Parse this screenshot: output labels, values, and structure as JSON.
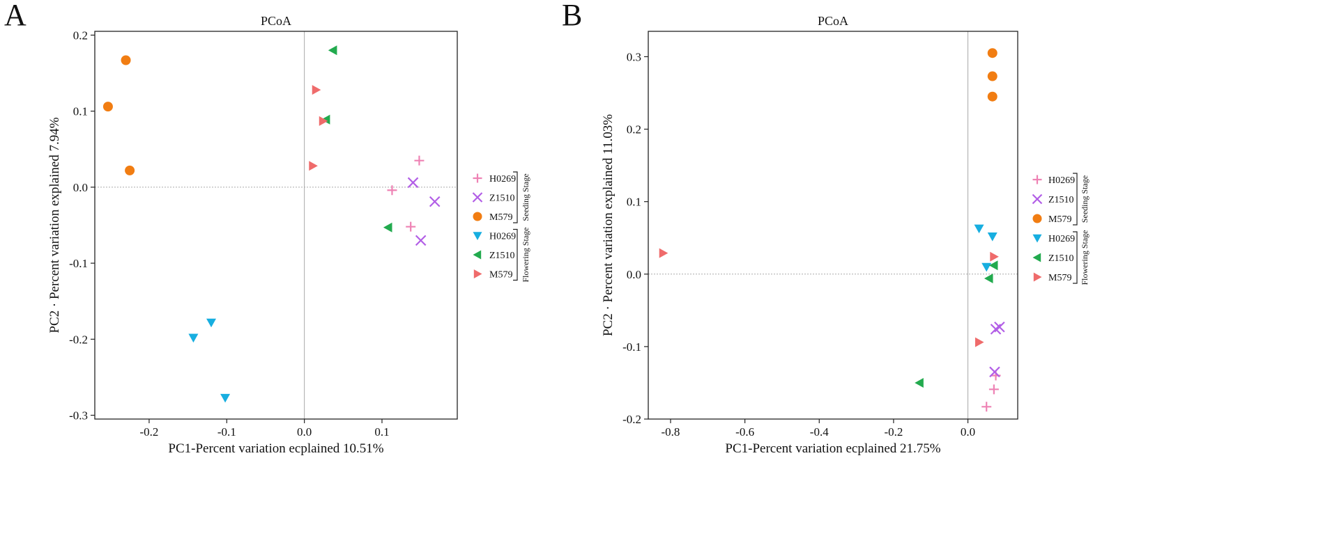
{
  "figure": {
    "panels": [
      "A",
      "B"
    ]
  },
  "legend": {
    "groups": [
      {
        "name": "Seeding Stage",
        "entries": [
          "H0269",
          "Z1510",
          "M579"
        ]
      },
      {
        "name": "Flowering Stage",
        "entries": [
          "H0269",
          "Z1510",
          "M579"
        ]
      }
    ]
  },
  "styles": {
    "Seeding Stage|H0269": {
      "marker": "plus",
      "color": "#ee82b4"
    },
    "Seeding Stage|Z1510": {
      "marker": "cross",
      "color": "#b25ee6"
    },
    "Seeding Stage|M579": {
      "marker": "circle",
      "color": "#f17d12"
    },
    "Flowering Stage|H0269": {
      "marker": "triangle-down",
      "color": "#17aee0"
    },
    "Flowering Stage|Z1510": {
      "marker": "triangle-left",
      "color": "#22aa4e"
    },
    "Flowering Stage|M579": {
      "marker": "triangle-right",
      "color": "#ef6b6b"
    }
  },
  "chart_data": [
    {
      "panel": "A",
      "type": "scatter",
      "title": "PCoA",
      "xlabel": "PC1-Percent variation ecplained 10.51%",
      "ylabel": "PC2 · Percent variation explained 7.94%",
      "xlim": [
        -0.27,
        0.197
      ],
      "ylim": [
        -0.305,
        0.205
      ],
      "xticks": [
        -0.2,
        -0.1,
        0.0,
        0.1
      ],
      "xtick_labels": [
        "-0.2",
        "-0.1",
        "0.0",
        "0.1"
      ],
      "yticks": [
        -0.3,
        -0.2,
        -0.1,
        0.0,
        0.1,
        0.2
      ],
      "ytick_labels": [
        "-0.3",
        "-0.2",
        "-0.1",
        "0.0",
        "0.1",
        "0.2"
      ],
      "reference_lines": {
        "x": 0.0,
        "y": 0.0
      },
      "series": [
        {
          "name": "H0269",
          "stage": "Seeding Stage",
          "points": [
            [
              0.148,
              0.035
            ],
            [
              0.113,
              -0.004
            ],
            [
              0.137,
              -0.052
            ]
          ]
        },
        {
          "name": "Z1510",
          "stage": "Seeding Stage",
          "points": [
            [
              0.14,
              0.006
            ],
            [
              0.168,
              -0.019
            ],
            [
              0.15,
              -0.07
            ]
          ]
        },
        {
          "name": "M579",
          "stage": "Seeding Stage",
          "points": [
            [
              -0.23,
              0.167
            ],
            [
              -0.253,
              0.106
            ],
            [
              -0.225,
              0.022
            ]
          ]
        },
        {
          "name": "H0269",
          "stage": "Flowering Stage",
          "points": [
            [
              -0.12,
              -0.178
            ],
            [
              -0.143,
              -0.198
            ],
            [
              -0.102,
              -0.277
            ]
          ]
        },
        {
          "name": "Z1510",
          "stage": "Flowering Stage",
          "points": [
            [
              0.037,
              0.18
            ],
            [
              0.028,
              0.089
            ],
            [
              0.108,
              -0.053
            ]
          ]
        },
        {
          "name": "M579",
          "stage": "Flowering Stage",
          "points": [
            [
              0.015,
              0.128
            ],
            [
              0.024,
              0.087
            ],
            [
              0.011,
              0.028
            ]
          ]
        }
      ]
    },
    {
      "panel": "B",
      "type": "scatter",
      "title": "PCoA",
      "xlabel": "PC1-Percent variation ecplained 21.75%",
      "ylabel": "PC2 · Percent variation explained 11.03%",
      "xlim": [
        -0.86,
        0.134
      ],
      "ylim": [
        -0.2,
        0.335
      ],
      "xticks": [
        -0.8,
        -0.6,
        -0.4,
        -0.2,
        0.0
      ],
      "xtick_labels": [
        "-0.8",
        "-0.6",
        "-0.4",
        "-0.2",
        "0.0"
      ],
      "yticks": [
        -0.2,
        -0.1,
        0.0,
        0.1,
        0.2,
        0.3
      ],
      "ytick_labels": [
        "-0.2",
        "-0.1",
        "0.0",
        "0.1",
        "0.2",
        "0.3"
      ],
      "reference_lines": {
        "x": 0.0,
        "y": 0.0
      },
      "series": [
        {
          "name": "H0269",
          "stage": "Seeding Stage",
          "points": [
            [
              0.075,
              -0.14
            ],
            [
              0.07,
              -0.159
            ],
            [
              0.05,
              -0.183
            ]
          ]
        },
        {
          "name": "Z1510",
          "stage": "Seeding Stage",
          "points": [
            [
              0.085,
              -0.073
            ],
            [
              0.075,
              -0.076
            ],
            [
              0.072,
              -0.135
            ]
          ]
        },
        {
          "name": "M579",
          "stage": "Seeding Stage",
          "points": [
            [
              0.066,
              0.305
            ],
            [
              0.066,
              0.273
            ],
            [
              0.066,
              0.245
            ]
          ]
        },
        {
          "name": "H0269",
          "stage": "Flowering Stage",
          "points": [
            [
              0.03,
              0.063
            ],
            [
              0.066,
              0.052
            ],
            [
              0.05,
              0.01
            ]
          ]
        },
        {
          "name": "Z1510",
          "stage": "Flowering Stage",
          "points": [
            [
              0.07,
              0.012
            ],
            [
              0.057,
              -0.006
            ],
            [
              -0.13,
              -0.15
            ]
          ]
        },
        {
          "name": "M579",
          "stage": "Flowering Stage",
          "points": [
            [
              -0.82,
              0.029
            ],
            [
              0.07,
              0.024
            ],
            [
              0.03,
              -0.094
            ]
          ]
        }
      ]
    }
  ]
}
